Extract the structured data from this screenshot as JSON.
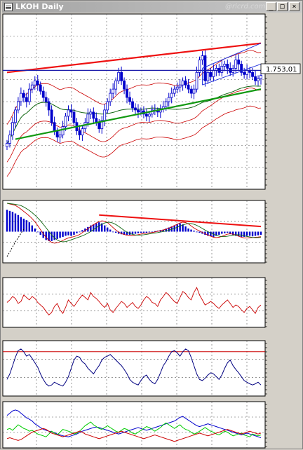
{
  "window": {
    "title": "LKOH Daily",
    "watermark": "@ricrd.com",
    "minimize_label": "_",
    "maximize_label": "□",
    "close_label": "×"
  },
  "colors": {
    "background": "#ffffff",
    "grid": "#555555",
    "candle": "#0000cc",
    "envelope": "#cc0000",
    "bollinger": "#cc0000",
    "trendline_upper": "#ee1111",
    "trendline_lower": "#119911",
    "horizontal_level": "#1a1aaa",
    "channel": "#2233dd",
    "ma_long": "#116611",
    "price_label_bg": "#ffffff"
  },
  "chart_data": [
    {
      "type": "candlestick",
      "name": "price",
      "last_price_label": "1.753,01",
      "y_scale": [
        1480,
        1900
      ],
      "closes": [
        1590,
        1610,
        1640,
        1670,
        1690,
        1710,
        1700,
        1690,
        1720,
        1730,
        1740,
        1730,
        1715,
        1700,
        1690,
        1670,
        1640,
        1620,
        1605,
        1610,
        1630,
        1655,
        1670,
        1665,
        1640,
        1620,
        1610,
        1625,
        1640,
        1660,
        1665,
        1650,
        1640,
        1625,
        1645,
        1670,
        1690,
        1710,
        1720,
        1740,
        1760,
        1740,
        1720,
        1700,
        1690,
        1675,
        1670,
        1665,
        1668,
        1660,
        1655,
        1660,
        1670,
        1668,
        1665,
        1672,
        1678,
        1690,
        1700,
        1710,
        1720,
        1725,
        1730,
        1740,
        1730,
        1720,
        1710,
        1720,
        1760,
        1790,
        1800,
        1740,
        1760,
        1750,
        1765,
        1770,
        1760,
        1775,
        1780,
        1770,
        1760,
        1770,
        1790,
        1780,
        1760,
        1755,
        1765,
        1760,
        1750,
        1740,
        1745,
        1753
      ],
      "upper_trendline": [
        1760,
        1830
      ],
      "lower_trendline": [
        1600,
        1720
      ],
      "horizontal_level": 1765,
      "channel_top": [
        1770,
        1830
      ],
      "channel_bottom": [
        1730,
        1780
      ]
    },
    {
      "type": "bar",
      "name": "macd",
      "y_scale": [
        -60,
        60
      ],
      "histogram": [
        42,
        40,
        38,
        35,
        32,
        28,
        25,
        22,
        18,
        12,
        6,
        0,
        -6,
        -12,
        -16,
        -18,
        -18,
        -16,
        -14,
        -12,
        -10,
        -8,
        -7,
        -8,
        -6,
        -3,
        0,
        3,
        6,
        9,
        12,
        14,
        16,
        18,
        16,
        12,
        8,
        4,
        0,
        -2,
        -4,
        -5,
        -6,
        -6,
        -6,
        -5,
        -4,
        -3,
        -2,
        -2,
        -2,
        -1,
        0,
        1,
        2,
        3,
        4,
        6,
        8,
        10,
        12,
        14,
        16,
        14,
        10,
        6,
        4,
        2,
        0,
        -2,
        -4,
        -6,
        -8,
        -9,
        -10,
        -8,
        -6,
        -4,
        -3,
        -2,
        -4,
        -6,
        -8,
        -9,
        -10,
        -10,
        -8,
        -8,
        -9,
        -8,
        -7,
        -6
      ]
    },
    {
      "type": "line",
      "name": "oscillator",
      "y_scale": [
        0,
        100
      ],
      "values": [
        50,
        55,
        62,
        58,
        48,
        52,
        65,
        60,
        55,
        62,
        58,
        50,
        45,
        40,
        32,
        25,
        30,
        42,
        48,
        35,
        28,
        40,
        55,
        48,
        42,
        50,
        58,
        65,
        60,
        55,
        70,
        62,
        58,
        52,
        45,
        40,
        48,
        35,
        30,
        38,
        45,
        52,
        48,
        40,
        45,
        50,
        42,
        38,
        45,
        55,
        62,
        58,
        50,
        48,
        42,
        55,
        62,
        70,
        65,
        58,
        52,
        48,
        60,
        72,
        68,
        60,
        55,
        70,
        80,
        65,
        55,
        45,
        48,
        52,
        48,
        42,
        38,
        45,
        50,
        55,
        48,
        40,
        45,
        42,
        35,
        30,
        38,
        42,
        35,
        28,
        40,
        45
      ]
    },
    {
      "type": "line",
      "name": "stochastic",
      "y_scale": [
        0,
        100
      ],
      "reference_level": 80,
      "values": [
        30,
        40,
        55,
        70,
        82,
        85,
        80,
        72,
        75,
        68,
        60,
        52,
        40,
        30,
        22,
        18,
        20,
        25,
        22,
        20,
        18,
        25,
        35,
        50,
        65,
        72,
        70,
        62,
        58,
        50,
        45,
        40,
        48,
        55,
        65,
        70,
        72,
        75,
        70,
        65,
        60,
        55,
        48,
        40,
        30,
        25,
        22,
        20,
        28,
        35,
        38,
        30,
        25,
        22,
        30,
        42,
        55,
        62,
        72,
        80,
        82,
        78,
        72,
        80,
        85,
        82,
        70,
        55,
        40,
        30,
        28,
        32,
        38,
        42,
        40,
        35,
        30,
        38,
        50,
        60,
        65,
        55,
        48,
        42,
        35,
        28,
        25,
        22,
        20,
        22,
        25,
        20
      ]
    },
    {
      "type": "line",
      "name": "dmi",
      "y_scale": [
        0,
        100
      ],
      "series": [
        {
          "color": "#0000cc",
          "values": [
            70,
            75,
            80,
            82,
            80,
            75,
            70,
            65,
            62,
            58,
            52,
            48,
            44,
            40,
            38,
            36,
            35,
            33,
            30,
            28,
            26,
            25,
            24,
            26,
            28,
            30,
            33,
            36,
            38,
            40,
            42,
            44,
            45,
            44,
            42,
            40,
            38,
            36,
            34,
            32,
            30,
            32,
            34,
            36,
            38,
            40,
            42,
            44,
            42,
            40,
            38,
            40,
            42,
            44,
            46,
            48,
            50,
            52,
            54,
            56,
            58,
            62,
            66,
            68,
            64,
            60,
            56,
            52,
            48,
            46,
            48,
            50,
            52,
            50,
            48,
            46,
            44,
            42,
            40,
            38,
            36,
            34,
            32,
            30,
            28,
            30,
            32,
            30,
            28,
            26,
            24,
            22
          ]
        },
        {
          "color": "#00cc00",
          "values": [
            40,
            42,
            38,
            44,
            50,
            46,
            42,
            40,
            36,
            38,
            34,
            30,
            28,
            26,
            24,
            30,
            36,
            32,
            28,
            34,
            40,
            38,
            36,
            34,
            30,
            32,
            36,
            42,
            48,
            52,
            56,
            50,
            46,
            42,
            40,
            44,
            48,
            44,
            40,
            36,
            34,
            38,
            42,
            40,
            36,
            32,
            30,
            34,
            38,
            42,
            46,
            44,
            40,
            36,
            40,
            44,
            50,
            54,
            50,
            46,
            42,
            46,
            50,
            44,
            40,
            38,
            34,
            30,
            32,
            36,
            40,
            44,
            40,
            36,
            34,
            30,
            28,
            32,
            36,
            34,
            30,
            26,
            28,
            30,
            32,
            28,
            26,
            24,
            30,
            28,
            26,
            28
          ]
        },
        {
          "color": "#cc0000",
          "values": [
            20,
            22,
            20,
            18,
            16,
            18,
            22,
            26,
            30,
            34,
            36,
            38,
            40,
            42,
            40,
            36,
            32,
            30,
            28,
            26,
            24,
            26,
            28,
            30,
            32,
            34,
            36,
            34,
            30,
            28,
            26,
            24,
            22,
            20,
            22,
            24,
            26,
            28,
            30,
            32,
            34,
            36,
            34,
            32,
            30,
            28,
            26,
            24,
            22,
            20,
            22,
            24,
            26,
            28,
            26,
            24,
            22,
            20,
            18,
            16,
            14,
            16,
            18,
            20,
            22,
            24,
            26,
            28,
            30,
            32,
            30,
            28,
            26,
            28,
            30,
            32,
            34,
            36,
            38,
            40,
            38,
            36,
            34,
            32,
            30,
            32,
            34,
            36,
            34,
            32,
            30,
            32
          ]
        }
      ]
    }
  ]
}
